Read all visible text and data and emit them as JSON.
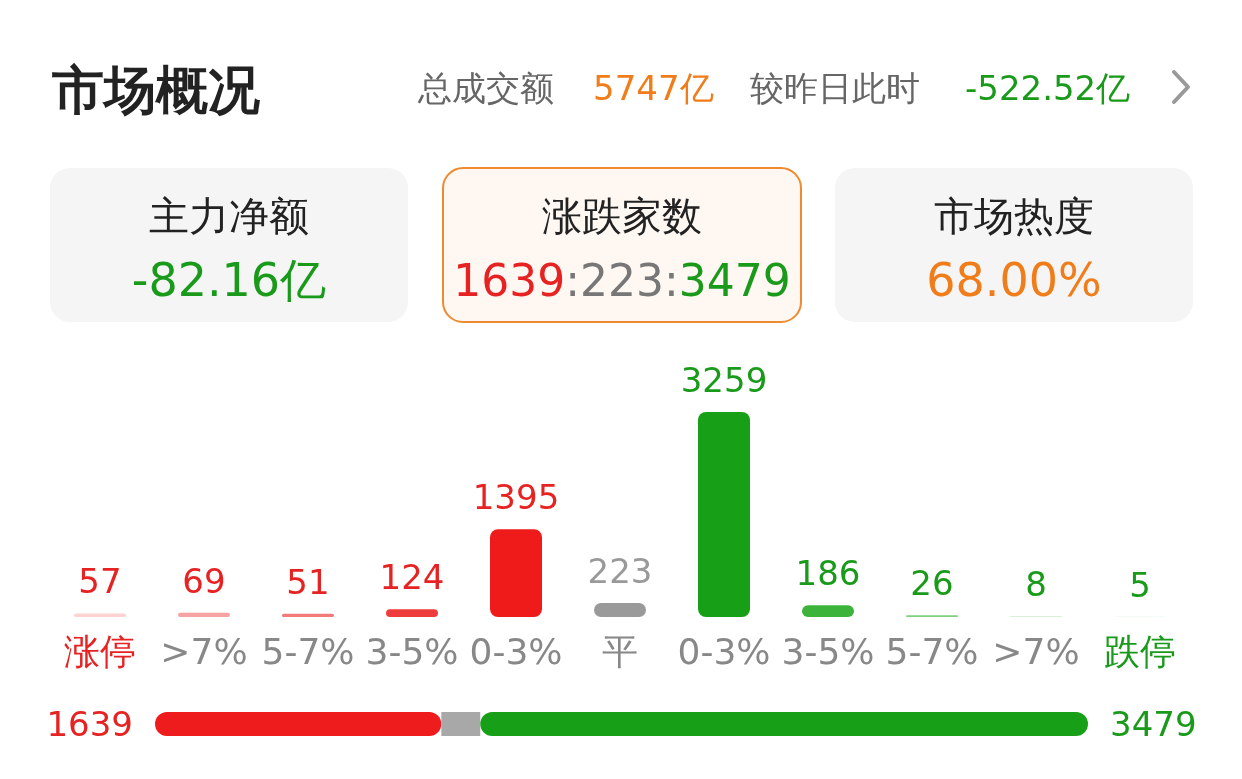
{
  "chart_data": [
    {
      "type": "other",
      "title": "市场概况",
      "annotations": [
        "总成交额",
        "5747亿",
        "较昨日此时",
        "-522.52亿",
        "主力净额",
        "-82.16亿",
        "涨跌家数",
        "1639:223:3479",
        "市场热度",
        "68.00%"
      ]
    },
    {
      "type": "bar",
      "categories": [
        "涨停",
        ">7%",
        "5-7%",
        "3-5%",
        "0-3%",
        "平",
        "0-3%",
        "3-5%",
        "5-7%",
        ">7%",
        "跌停"
      ],
      "values": [
        57,
        69,
        51,
        124,
        1395,
        223,
        3259,
        186,
        26,
        8,
        5
      ],
      "colors": [
        "#fcd2d2",
        "#f7a3a3",
        "#f37a7a",
        "#ee3c3c",
        "#ef1b1b",
        "#9a9a9a",
        "#17a017",
        "#3cb43c",
        "#7fd07f",
        "#b8e4b8",
        "#d8eed8"
      ],
      "data_labels": true
    },
    {
      "type": "bar",
      "orientation": "horizontal",
      "stacked": true,
      "categories": [
        null
      ],
      "series": [
        {
          "color": "#ee1c1c",
          "values": [
            1639
          ],
          "value_labels": [
            "1639"
          ]
        },
        {
          "color": "#a8a8a8",
          "values": [
            223
          ],
          "value_labels": [
            null
          ]
        },
        {
          "color": "#17a017",
          "values": [
            3479
          ],
          "value_labels": [
            "3479"
          ]
        }
      ]
    }
  ]
}
